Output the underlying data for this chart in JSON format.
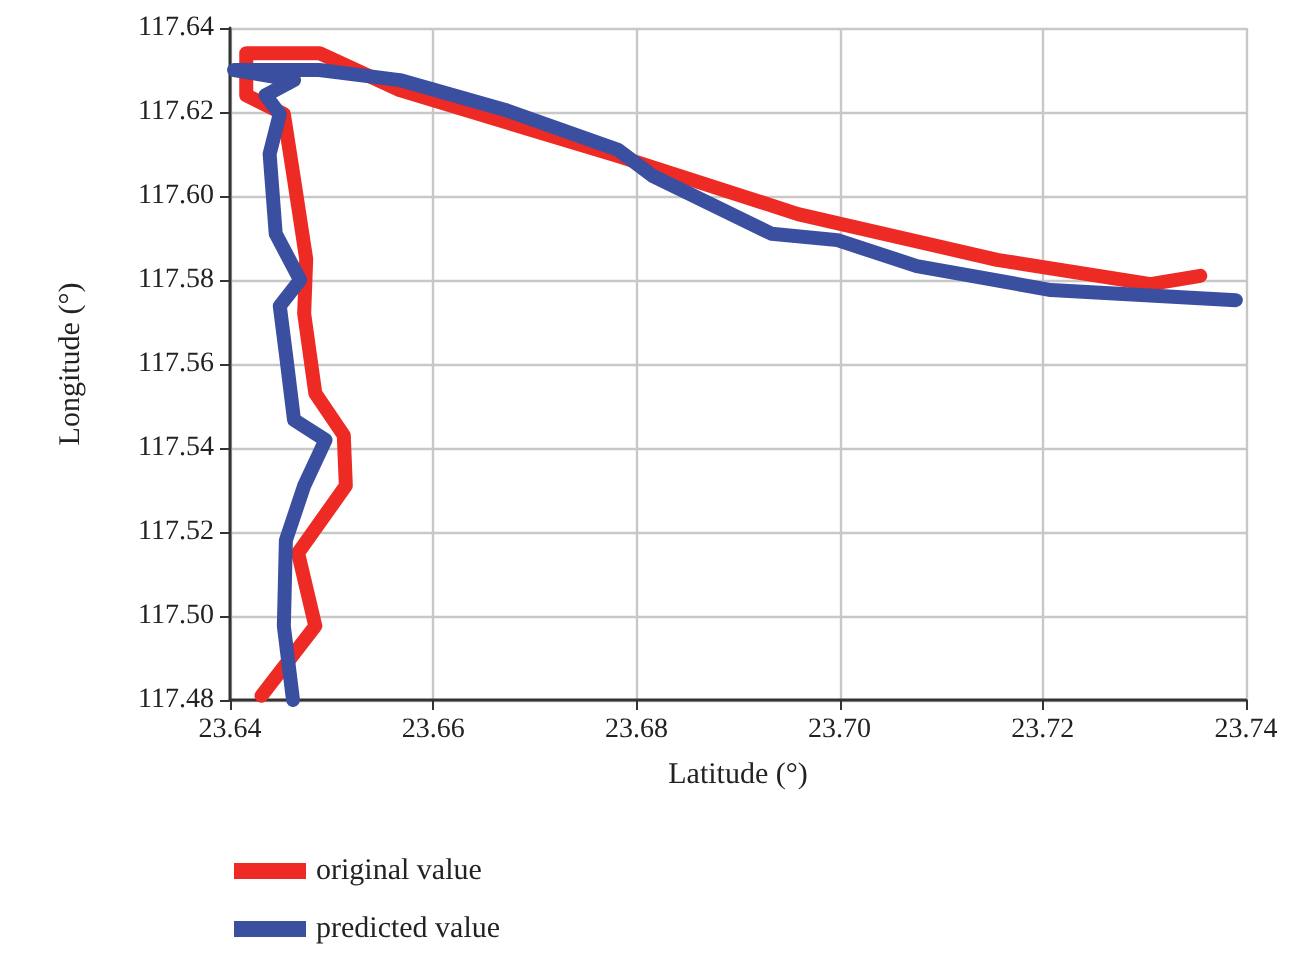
{
  "chart_data": {
    "type": "line",
    "xlabel": "Latitude (°)",
    "ylabel": "Longitude (°)",
    "xlim": [
      23.64,
      23.74
    ],
    "xticks": [
      23.64,
      23.66,
      23.68,
      {
        "value": 23.7,
        "label": "23.70"
      },
      23.72,
      23.74
    ],
    "ylim": [
      117.48,
      117.64
    ],
    "yticks": [
      117.48,
      {
        "value": 117.5,
        "label": "117.50"
      },
      117.52,
      117.54,
      117.56,
      117.58,
      {
        "value": 117.6,
        "label": "117.60"
      },
      117.62,
      117.64
    ],
    "grid": true,
    "legend": "bottom",
    "marker": "none",
    "series": [
      {
        "name": "original value",
        "color": "#ee2a24",
        "x": [
          23.6431,
          23.6484,
          23.6467,
          23.6514,
          23.6512,
          23.6484,
          23.6473,
          23.6475,
          23.6463,
          23.6453,
          23.6416,
          23.6416,
          23.6488,
          23.6567,
          23.6782,
          23.6959,
          23.7155,
          23.7306,
          23.7355
        ],
        "values": [
          117.481,
          117.4976,
          117.515,
          117.531,
          117.543,
          117.553,
          117.572,
          117.585,
          117.604,
          117.6195,
          117.624,
          117.634,
          117.634,
          117.6252,
          117.6095,
          117.5957,
          117.5848,
          117.579,
          117.581
        ]
      },
      {
        "name": "predicted value",
        "color": "#3a4fa0",
        "x": [
          23.6462,
          23.6453,
          23.6455,
          23.6473,
          23.6494,
          23.6463,
          23.6455,
          23.6449,
          23.6469,
          23.6445,
          23.6439,
          23.6449,
          23.6435,
          23.6463,
          23.6404,
          23.6488,
          23.6567,
          23.6671,
          23.6782,
          23.6816,
          23.6933,
          23.6998,
          23.7076,
          23.7208,
          23.739
        ],
        "values": [
          117.48,
          117.4976,
          117.518,
          117.531,
          117.5419,
          117.5467,
          117.5624,
          117.5738,
          117.58,
          117.591,
          117.61,
          117.6195,
          117.624,
          117.6276,
          117.63,
          117.63,
          117.6276,
          117.6205,
          117.611,
          117.6048,
          117.591,
          117.5895,
          117.5833,
          117.5776,
          117.5752
        ]
      }
    ]
  }
}
